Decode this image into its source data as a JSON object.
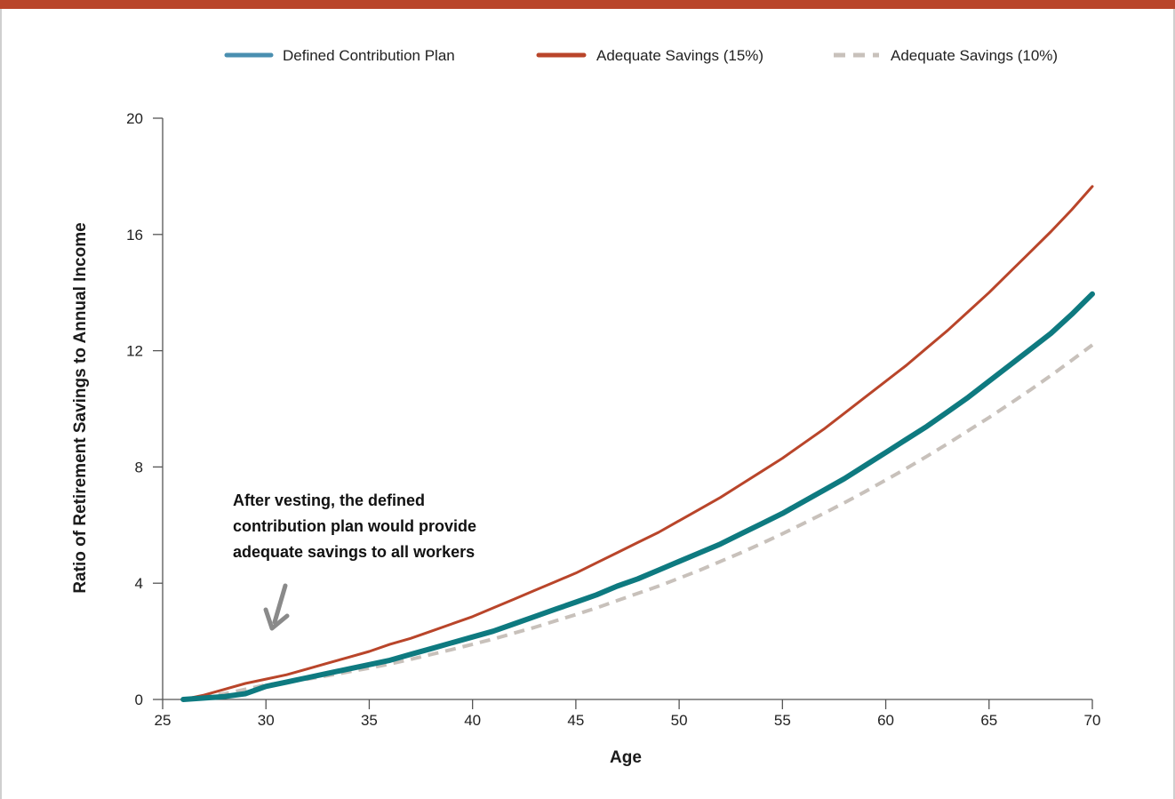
{
  "colors": {
    "header_bar": "#b9452a",
    "dc_plan": "#0e7a80",
    "adequate_15": "#b9452a",
    "adequate_10": "#c8c1bb",
    "arrow": "#8a8a8a"
  },
  "annotation": {
    "lines": [
      "After vesting, the defined",
      "contribution plan would provide",
      "adequate savings to all workers"
    ]
  },
  "chart_data": {
    "type": "line",
    "xlabel": "Age",
    "ylabel": "Ratio of Retirement Savings to Annual Income",
    "xlim": [
      25,
      70
    ],
    "ylim": [
      0,
      20
    ],
    "xticks": [
      25,
      30,
      35,
      40,
      45,
      50,
      55,
      60,
      65,
      70
    ],
    "yticks": [
      0,
      4,
      8,
      12,
      16,
      20
    ],
    "grid": false,
    "legend_position": "top",
    "x": [
      26,
      27,
      28,
      29,
      30,
      31,
      32,
      33,
      34,
      35,
      36,
      37,
      38,
      39,
      40,
      41,
      42,
      43,
      44,
      45,
      46,
      47,
      48,
      49,
      50,
      51,
      52,
      53,
      54,
      55,
      56,
      57,
      58,
      59,
      60,
      61,
      62,
      63,
      64,
      65,
      66,
      67,
      68,
      69,
      70
    ],
    "series": [
      {
        "name": "Defined Contribution Plan",
        "color_key": "dc_plan",
        "style": "solid",
        "values": [
          0,
          0.05,
          0.1,
          0.2,
          0.45,
          0.6,
          0.75,
          0.9,
          1.05,
          1.2,
          1.35,
          1.55,
          1.75,
          1.95,
          2.15,
          2.35,
          2.6,
          2.85,
          3.1,
          3.35,
          3.6,
          3.9,
          4.15,
          4.45,
          4.75,
          5.05,
          5.35,
          5.7,
          6.05,
          6.4,
          6.8,
          7.2,
          7.6,
          8.05,
          8.5,
          8.95,
          9.4,
          9.9,
          10.4,
          10.95,
          11.5,
          12.05,
          12.6,
          13.25,
          13.95
        ]
      },
      {
        "name": "Adequate Savings (15%)",
        "color_key": "adequate_15",
        "style": "solid",
        "values": [
          0,
          0.15,
          0.35,
          0.55,
          0.7,
          0.85,
          1.05,
          1.25,
          1.45,
          1.65,
          1.9,
          2.1,
          2.35,
          2.6,
          2.85,
          3.15,
          3.45,
          3.75,
          4.05,
          4.35,
          4.7,
          5.05,
          5.4,
          5.75,
          6.15,
          6.55,
          6.95,
          7.4,
          7.85,
          8.3,
          8.8,
          9.3,
          9.85,
          10.4,
          10.95,
          11.5,
          12.1,
          12.7,
          13.35,
          14.0,
          14.7,
          15.4,
          16.1,
          16.85,
          17.65
        ]
      },
      {
        "name": "Adequate Savings (10%)",
        "color_key": "adequate_10",
        "style": "dashed",
        "values": [
          0,
          0.1,
          0.2,
          0.35,
          0.5,
          0.6,
          0.7,
          0.82,
          0.95,
          1.08,
          1.22,
          1.38,
          1.55,
          1.72,
          1.9,
          2.08,
          2.28,
          2.48,
          2.7,
          2.92,
          3.15,
          3.4,
          3.65,
          3.9,
          4.17,
          4.45,
          4.75,
          5.05,
          5.37,
          5.7,
          6.05,
          6.4,
          6.77,
          7.15,
          7.55,
          7.95,
          8.37,
          8.8,
          9.25,
          9.7,
          10.17,
          10.65,
          11.15,
          11.67,
          12.2
        ]
      }
    ]
  }
}
